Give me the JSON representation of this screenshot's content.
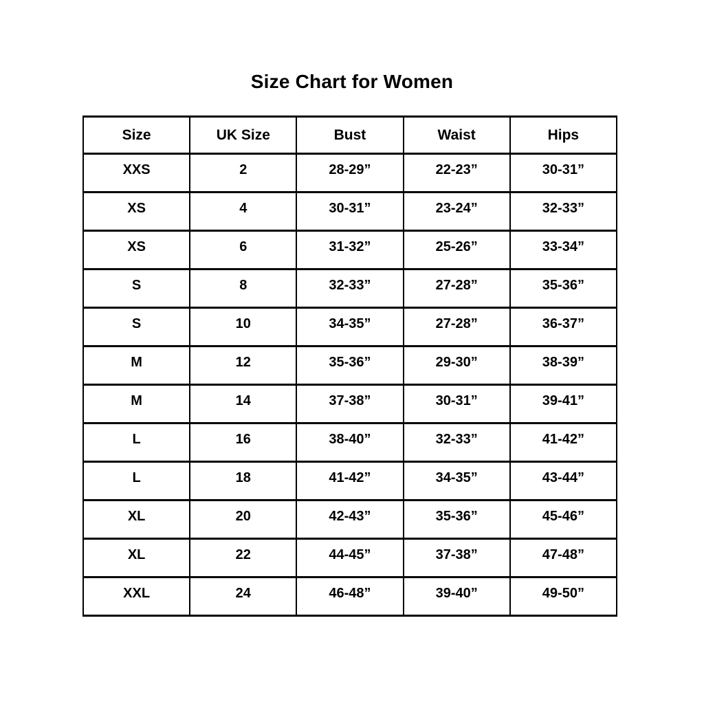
{
  "page": {
    "title": "Size Chart for Women"
  },
  "table": {
    "headers": [
      "Size",
      "UK Size",
      "Bust",
      "Waist",
      "Hips"
    ],
    "rows": [
      [
        "XXS",
        "2",
        "28-29”",
        "22-23”",
        "30-31”"
      ],
      [
        "XS",
        "4",
        "30-31”",
        "23-24”",
        "32-33”"
      ],
      [
        "XS",
        "6",
        "31-32”",
        "25-26”",
        "33-34”"
      ],
      [
        "S",
        "8",
        "32-33”",
        "27-28”",
        "35-36”"
      ],
      [
        "S",
        "10",
        "34-35”",
        "27-28”",
        "36-37”"
      ],
      [
        "M",
        "12",
        "35-36”",
        "29-30”",
        "38-39”"
      ],
      [
        "M",
        "14",
        "37-38”",
        "30-31”",
        "39-41”"
      ],
      [
        "L",
        "16",
        "38-40”",
        "32-33”",
        "41-42”"
      ],
      [
        "L",
        "18",
        "41-42”",
        "34-35”",
        "43-44”"
      ],
      [
        "XL",
        "20",
        "42-43”",
        "35-36”",
        "45-46”"
      ],
      [
        "XL",
        "22",
        "44-45”",
        "37-38”",
        "47-48”"
      ],
      [
        "XXL",
        "24",
        "46-48”",
        "39-40”",
        "49-50”"
      ]
    ],
    "colors": {
      "text": "#000000",
      "border": "#000000",
      "background": "#ffffff"
    }
  }
}
